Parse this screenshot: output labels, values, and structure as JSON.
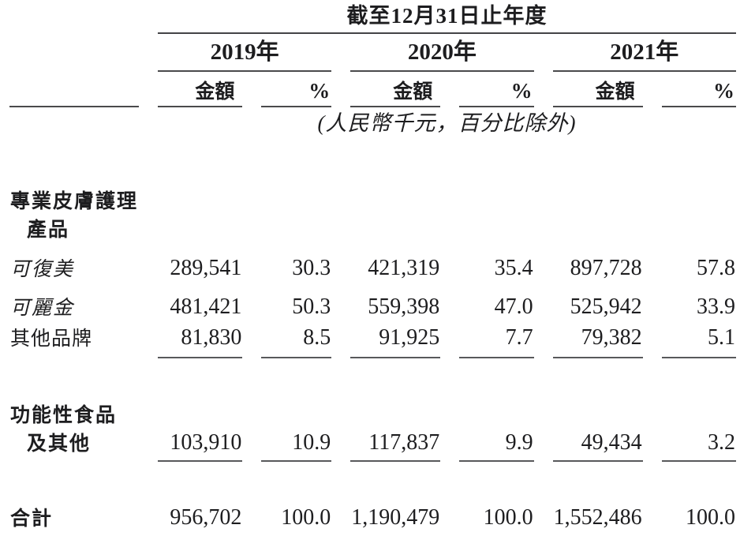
{
  "table": {
    "title": "截至12月31日止年度",
    "unit_note": "(人民幣千元，百分比除外)",
    "year_groups": [
      {
        "year": "2019年",
        "amount_header": "金額",
        "percent_header": "%"
      },
      {
        "year": "2020年",
        "amount_header": "金額",
        "percent_header": "%"
      },
      {
        "year": "2021年",
        "amount_header": "金額",
        "percent_header": "%"
      }
    ],
    "rows": [
      {
        "label": "專業皮膚護理",
        "style": "category"
      },
      {
        "label": "產品",
        "style": "category-indent"
      },
      {
        "label": "可復美",
        "style": "brand-italic",
        "values": [
          "289,541",
          "30.3",
          "421,319",
          "35.4",
          "897,728",
          "57.8"
        ]
      },
      {
        "label": "可麗金",
        "style": "brand-italic",
        "values": [
          "481,421",
          "50.3",
          "559,398",
          "47.0",
          "525,942",
          "33.9"
        ]
      },
      {
        "label": "其他品牌",
        "style": "plain",
        "underline": true,
        "values": [
          "81,830",
          "8.5",
          "91,925",
          "7.7",
          "79,382",
          "5.1"
        ]
      },
      {
        "label": "功能性食品",
        "style": "category"
      },
      {
        "label": "及其他",
        "style": "category-indent",
        "underline": true,
        "values": [
          "103,910",
          "10.9",
          "117,837",
          "9.9",
          "49,434",
          "3.2"
        ]
      },
      {
        "label": "合計",
        "style": "total",
        "double_underline": true,
        "values": [
          "956,702",
          "100.0",
          "1,190,479",
          "100.0",
          "1,552,486",
          "100.0"
        ]
      }
    ],
    "rule_colors": {
      "thin": "#58595b",
      "header": "#4a4a4c",
      "total": "#161616"
    },
    "text_color": "#1d1d1f",
    "background": "#ffffff"
  }
}
